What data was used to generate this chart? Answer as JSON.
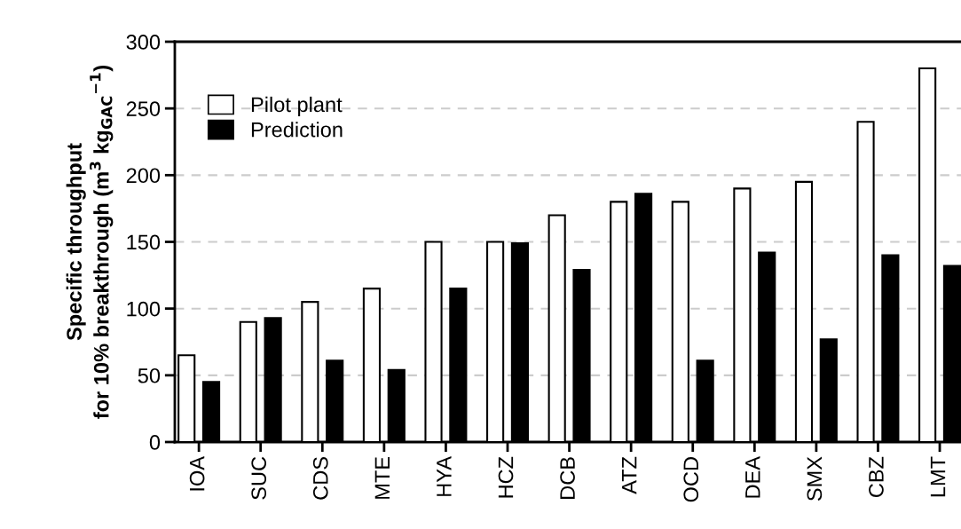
{
  "chart_data": {
    "type": "bar",
    "ylabel": "Specific throughput\nfor 10% breakthrough (m$^{3}$ kg$_{GAC}$$^{−1}$)",
    "categories": [
      "IOA",
      "SUC",
      "CDS",
      "MTE",
      "HYA",
      "HCZ",
      "DCB",
      "ATZ",
      "OCD",
      "DEA",
      "SMX",
      "CBZ",
      "LMT"
    ],
    "series": [
      {
        "name": "Pilot plant",
        "color": "#ffffff",
        "values": [
          65,
          90,
          105,
          115,
          150,
          150,
          170,
          180,
          180,
          190,
          195,
          240,
          280
        ]
      },
      {
        "name": "Prediction",
        "color": "#000000",
        "values": [
          45,
          93,
          61,
          54,
          115,
          149,
          129,
          186,
          61,
          142,
          77,
          140,
          132
        ]
      }
    ],
    "ylim": [
      0,
      300
    ],
    "yticks": [
      0,
      50,
      100,
      150,
      200,
      250,
      300
    ],
    "grid": "y",
    "legend": "top left"
  }
}
